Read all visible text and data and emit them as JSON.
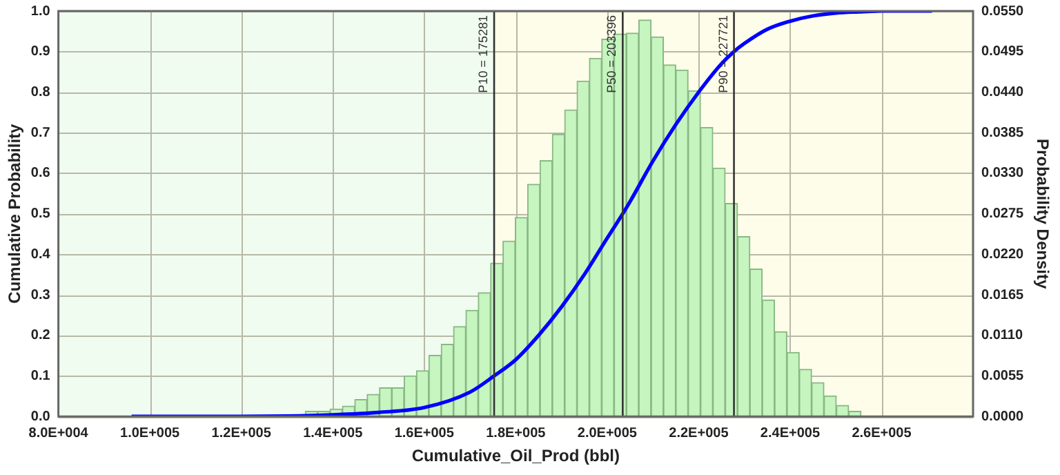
{
  "chart_data": {
    "type": "histogram",
    "xlabel": "Cumulative_Oil_Prod (bbl)",
    "ylabel": "Cumulative Probability",
    "y2label": "Probability Density",
    "bins": [
      134000,
      136700,
      139400,
      142100,
      144800,
      147500,
      150200,
      152900,
      155600,
      158300,
      161000,
      163700,
      166400,
      169100,
      171800,
      174500,
      177200,
      179900,
      182600,
      185300,
      188000,
      190700,
      193400,
      196100,
      198800,
      201500,
      204200,
      206900,
      209600,
      212300,
      215000,
      217700,
      220400,
      223100,
      225800,
      228500,
      231200,
      233900,
      236600,
      239300,
      242000,
      244700,
      247400,
      250100,
      252800,
      255500
    ],
    "series": [
      {
        "axis": "y2",
        "color": "#c6f5c0",
        "values": [
          0.0007,
          0.0007,
          0.001,
          0.0014,
          0.0023,
          0.003,
          0.0039,
          0.0039,
          0.0055,
          0.0062,
          0.0083,
          0.0098,
          0.0122,
          0.0144,
          0.0168,
          0.0208,
          0.0238,
          0.027,
          0.0315,
          0.0347,
          0.0383,
          0.0416,
          0.0455,
          0.0486,
          0.0512,
          0.0519,
          0.052,
          0.0538,
          0.0515,
          0.0477,
          0.047,
          0.0442,
          0.0392,
          0.0337,
          0.0289,
          0.0244,
          0.02,
          0.0158,
          0.0115,
          0.0087,
          0.0064,
          0.0046,
          0.0028,
          0.0015,
          0.0007
        ]
      },
      {
        "type": "line",
        "color": "#0000ff",
        "x": [
          96000,
          110000,
          120000,
          130000,
          140000,
          150000,
          160000,
          170000,
          175281,
          180000,
          185000,
          190000,
          195000,
          200000,
          203396,
          205000,
          210000,
          215000,
          220000,
          225000,
          227721,
          230000,
          235000,
          240000,
          245000,
          250000,
          255000,
          260000,
          271000
        ],
        "values": [
          0,
          0,
          0,
          0.001,
          0.004,
          0.01,
          0.022,
          0.06,
          0.1,
          0.14,
          0.2,
          0.27,
          0.35,
          0.44,
          0.5,
          0.53,
          0.63,
          0.72,
          0.8,
          0.87,
          0.9,
          0.92,
          0.955,
          0.975,
          0.988,
          0.995,
          0.998,
          1,
          1
        ]
      }
    ],
    "xlim": [
      80000,
      280000
    ],
    "xticks": [
      {
        "value": 80000,
        "label": "8.0E+004"
      },
      {
        "value": 100000,
        "label": "1.0E+005"
      },
      {
        "value": 120000,
        "label": "1.2E+005"
      },
      {
        "value": 140000,
        "label": "1.4E+005"
      },
      {
        "value": 160000,
        "label": "1.6E+005"
      },
      {
        "value": 180000,
        "label": "1.8E+005"
      },
      {
        "value": 200000,
        "label": "2.0E+005"
      },
      {
        "value": 220000,
        "label": "2.2E+005"
      },
      {
        "value": 240000,
        "label": "2.4E+005"
      },
      {
        "value": 260000,
        "label": "2.6E+005"
      }
    ],
    "ylim": [
      0,
      1
    ],
    "yticks": [
      {
        "value": 0,
        "label": "0.0"
      },
      0.1,
      0.2,
      0.3,
      0.4,
      0.5,
      0.6,
      0.7,
      0.8,
      0.9,
      {
        "value": 1,
        "label": "1.0"
      }
    ],
    "y2lim": [
      0,
      0.055
    ],
    "y2ticks": [
      {
        "value": 0,
        "label": "0.0000"
      },
      {
        "value": 0.0055,
        "label": "0.0055"
      },
      {
        "value": 0.011,
        "label": "0.0110"
      },
      {
        "value": 0.0165,
        "label": "0.0165"
      },
      {
        "value": 0.022,
        "label": "0.0220"
      },
      {
        "value": 0.0275,
        "label": "0.0275"
      },
      {
        "value": 0.033,
        "label": "0.0330"
      },
      {
        "value": 0.0385,
        "label": "0.0385"
      },
      {
        "value": 0.044,
        "label": "0.0440"
      },
      {
        "value": 0.0495,
        "label": "0.0495"
      },
      {
        "value": 0.055,
        "label": "0.0550"
      }
    ],
    "bands": [
      {
        "axis": "x",
        "from": 80000,
        "to": 175281,
        "color": "#f0fcef"
      },
      {
        "axis": "x",
        "from": 175281,
        "to": 280000,
        "color": "#fefde9"
      }
    ],
    "ref_lines": [
      {
        "axis": "x",
        "value": 175281,
        "label": "P10 = 175281",
        "color": "#333333"
      },
      {
        "axis": "x",
        "value": 203396,
        "label": "P50 = 203396",
        "color": "#333333"
      },
      {
        "axis": "x",
        "value": 227721,
        "label": "P90 = 227721",
        "color": "#333333"
      }
    ],
    "grid": true,
    "legend": false
  }
}
